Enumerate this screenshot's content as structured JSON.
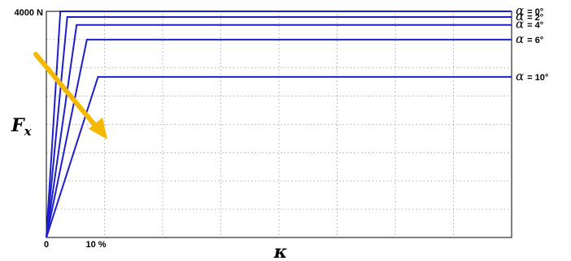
{
  "chart_data": {
    "type": "line",
    "title": "",
    "xlabel": "κ",
    "ylabel_main": "F",
    "ylabel_sub": "x",
    "y_tick_label": "4000 N",
    "x_tick_labels": [
      "0",
      "10 %"
    ],
    "xlim": [
      0,
      100
    ],
    "ylim": [
      0,
      4000
    ],
    "grid": true,
    "line_color": "#1f1fc8",
    "arrow_color": "#f5b800",
    "legend_placement": "right",
    "series": [
      {
        "alpha_symbol": "α",
        "alpha_value": "= 0°",
        "x": [
          0,
          3.0,
          100
        ],
        "y": [
          0,
          4000,
          4000
        ]
      },
      {
        "alpha_symbol": "α",
        "alpha_value": "= 2°",
        "x": [
          0,
          4.5,
          100
        ],
        "y": [
          0,
          3900,
          3900
        ]
      },
      {
        "alpha_symbol": "α",
        "alpha_value": "= 4°",
        "x": [
          0,
          6.5,
          100
        ],
        "y": [
          0,
          3760,
          3760
        ]
      },
      {
        "alpha_symbol": "α",
        "alpha_value": "= 6°",
        "x": [
          0,
          8.7,
          100
        ],
        "y": [
          0,
          3500,
          3500
        ]
      },
      {
        "alpha_symbol": "α",
        "alpha_value": "= 10°",
        "x": [
          0,
          11.1,
          100
        ],
        "y": [
          0,
          2840,
          2840
        ]
      }
    ]
  }
}
